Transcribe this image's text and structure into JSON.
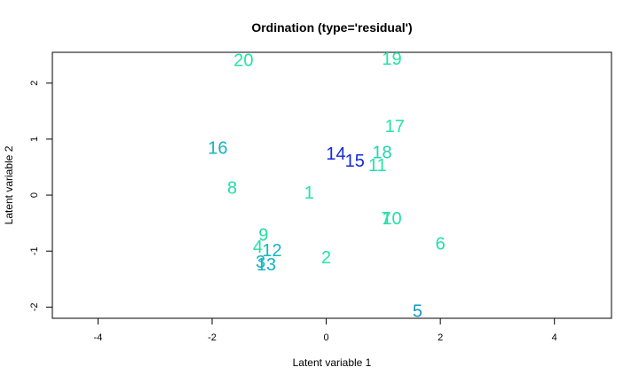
{
  "chart_data": {
    "type": "scatter",
    "title": "Ordination (type='residual')",
    "xlabel": "Latent variable 1",
    "ylabel": "Latent variable 2",
    "xlim": [
      -4.8,
      5.0
    ],
    "ylim": [
      -2.2,
      2.55
    ],
    "xticks": [
      -4,
      -2,
      0,
      2,
      4
    ],
    "yticks": [
      -2,
      -1,
      0,
      1,
      2
    ],
    "xtick_labels": [
      "-4",
      "-2",
      "0",
      "2",
      "4"
    ],
    "ytick_labels": [
      "-2",
      "-1",
      "0",
      "1",
      "2"
    ],
    "grid": false,
    "legend": false,
    "points": [
      {
        "label": "1",
        "x": -0.3,
        "y": 0.03,
        "color": "#20e6a0"
      },
      {
        "label": "2",
        "x": 0.0,
        "y": -1.12,
        "color": "#20e6a0"
      },
      {
        "label": "3",
        "x": -1.15,
        "y": -1.2,
        "color": "#14b4c0"
      },
      {
        "label": "4",
        "x": -1.2,
        "y": -0.93,
        "color": "#20e0a4"
      },
      {
        "label": "5",
        "x": 1.6,
        "y": -2.08,
        "color": "#1496c8"
      },
      {
        "label": "6",
        "x": 2.0,
        "y": -0.88,
        "color": "#20e0a8"
      },
      {
        "label": "7",
        "x": 1.05,
        "y": -0.43,
        "color": "#20e6a0"
      },
      {
        "label": "8",
        "x": -1.65,
        "y": 0.12,
        "color": "#20e0a8"
      },
      {
        "label": "9",
        "x": -1.1,
        "y": -0.72,
        "color": "#20e0a4"
      },
      {
        "label": "10",
        "x": 1.15,
        "y": -0.43,
        "color": "#20e0a8"
      },
      {
        "label": "11",
        "x": 0.9,
        "y": 0.52,
        "color": "#20e6a0"
      },
      {
        "label": "12",
        "x": -0.95,
        "y": -1.0,
        "color": "#14b4c0"
      },
      {
        "label": "13",
        "x": -1.05,
        "y": -1.25,
        "color": "#14b4c0"
      },
      {
        "label": "14",
        "x": 0.17,
        "y": 0.73,
        "color": "#1428d8"
      },
      {
        "label": "15",
        "x": 0.5,
        "y": 0.6,
        "color": "#1428d8"
      },
      {
        "label": "16",
        "x": -1.9,
        "y": 0.83,
        "color": "#14b4c0"
      },
      {
        "label": "17",
        "x": 1.2,
        "y": 1.22,
        "color": "#20e6a0"
      },
      {
        "label": "18",
        "x": 0.98,
        "y": 0.75,
        "color": "#20d2b0"
      },
      {
        "label": "19",
        "x": 1.15,
        "y": 2.42,
        "color": "#20e6a0"
      },
      {
        "label": "20",
        "x": -1.45,
        "y": 2.4,
        "color": "#20e6a0"
      }
    ]
  }
}
